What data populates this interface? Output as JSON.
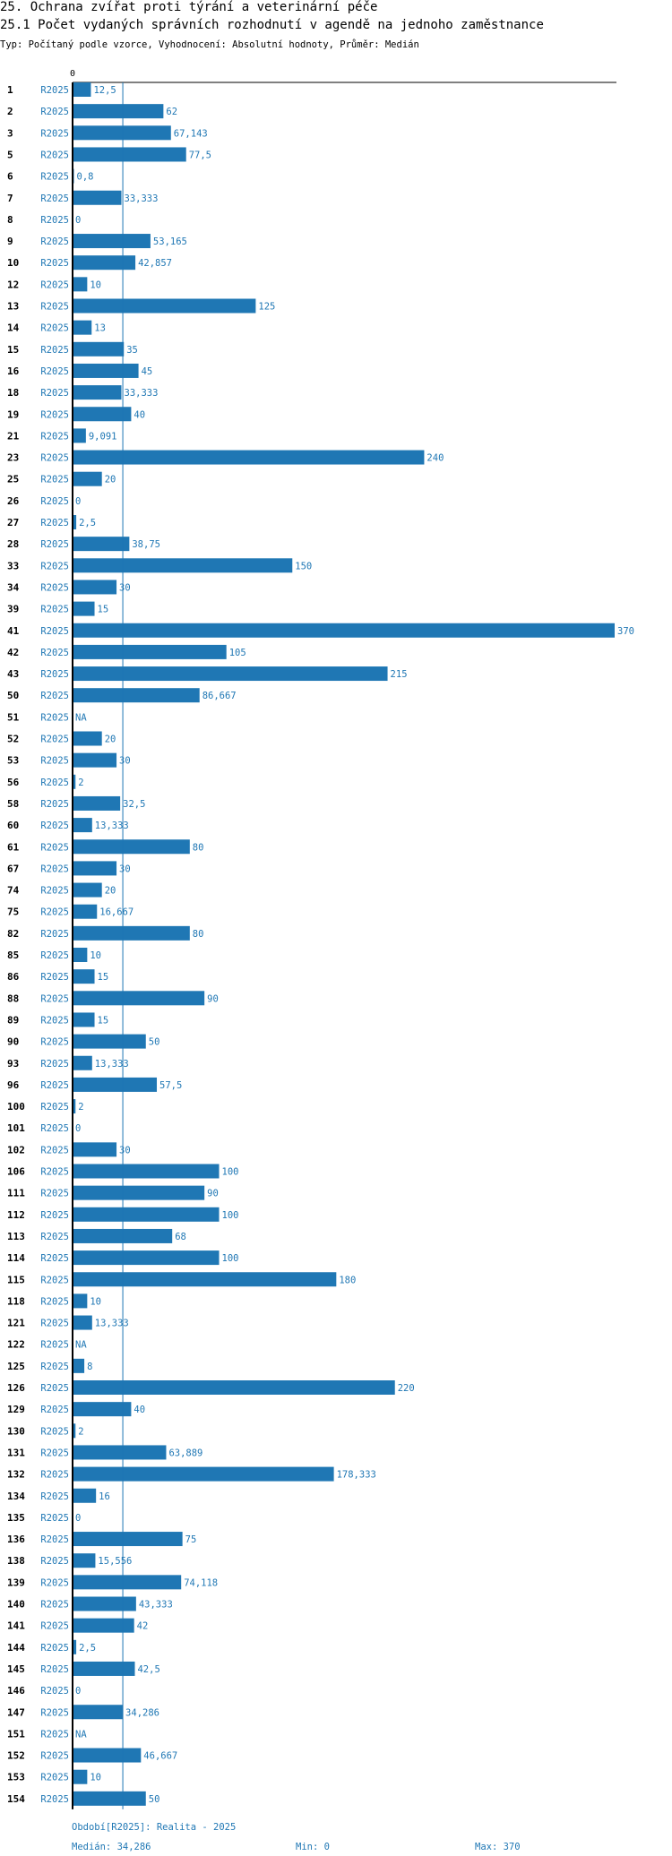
{
  "header": {
    "title": "25. Ochrana zvířat proti týrání a veterinární péče",
    "subtitle": "25.1 Počet vydaných správních rozhodnutí v agendě na jednoho zaměstnance",
    "meta": "Typ: Počítaný podle vzorce, Vyhodnocení: Absolutní hodnoty, Průměr: Medián"
  },
  "chart_data": {
    "type": "bar",
    "orientation": "horizontal",
    "title": "25.1 Počet vydaných správních rozhodnutí v agendě na jednoho zaměstnance",
    "axis_start_label": "0",
    "xlim": [
      0,
      370
    ],
    "median": 34.286,
    "bar_color": "#1f77b4",
    "rows": [
      {
        "id": "1",
        "period": "R2025",
        "value": 12.5,
        "label": "12,5"
      },
      {
        "id": "2",
        "period": "R2025",
        "value": 62,
        "label": "62"
      },
      {
        "id": "3",
        "period": "R2025",
        "value": 67.143,
        "label": "67,143"
      },
      {
        "id": "5",
        "period": "R2025",
        "value": 77.5,
        "label": "77,5"
      },
      {
        "id": "6",
        "period": "R2025",
        "value": 0.8,
        "label": "0,8"
      },
      {
        "id": "7",
        "period": "R2025",
        "value": 33.333,
        "label": "33,333"
      },
      {
        "id": "8",
        "period": "R2025",
        "value": 0,
        "label": "0"
      },
      {
        "id": "9",
        "period": "R2025",
        "value": 53.165,
        "label": "53,165"
      },
      {
        "id": "10",
        "period": "R2025",
        "value": 42.857,
        "label": "42,857"
      },
      {
        "id": "12",
        "period": "R2025",
        "value": 10,
        "label": "10"
      },
      {
        "id": "13",
        "period": "R2025",
        "value": 125,
        "label": "125"
      },
      {
        "id": "14",
        "period": "R2025",
        "value": 13,
        "label": "13"
      },
      {
        "id": "15",
        "period": "R2025",
        "value": 35,
        "label": "35"
      },
      {
        "id": "16",
        "period": "R2025",
        "value": 45,
        "label": "45"
      },
      {
        "id": "18",
        "period": "R2025",
        "value": 33.333,
        "label": "33,333"
      },
      {
        "id": "19",
        "period": "R2025",
        "value": 40,
        "label": "40"
      },
      {
        "id": "21",
        "period": "R2025",
        "value": 9.091,
        "label": "9,091"
      },
      {
        "id": "23",
        "period": "R2025",
        "value": 240,
        "label": "240"
      },
      {
        "id": "25",
        "period": "R2025",
        "value": 20,
        "label": "20"
      },
      {
        "id": "26",
        "period": "R2025",
        "value": 0,
        "label": "0"
      },
      {
        "id": "27",
        "period": "R2025",
        "value": 2.5,
        "label": "2,5"
      },
      {
        "id": "28",
        "period": "R2025",
        "value": 38.75,
        "label": "38,75"
      },
      {
        "id": "33",
        "period": "R2025",
        "value": 150,
        "label": "150"
      },
      {
        "id": "34",
        "period": "R2025",
        "value": 30,
        "label": "30"
      },
      {
        "id": "39",
        "period": "R2025",
        "value": 15,
        "label": "15"
      },
      {
        "id": "41",
        "period": "R2025",
        "value": 370,
        "label": "370"
      },
      {
        "id": "42",
        "period": "R2025",
        "value": 105,
        "label": "105"
      },
      {
        "id": "43",
        "period": "R2025",
        "value": 215,
        "label": "215"
      },
      {
        "id": "50",
        "period": "R2025",
        "value": 86.667,
        "label": "86,667"
      },
      {
        "id": "51",
        "period": "R2025",
        "value": null,
        "label": "NA"
      },
      {
        "id": "52",
        "period": "R2025",
        "value": 20,
        "label": "20"
      },
      {
        "id": "53",
        "period": "R2025",
        "value": 30,
        "label": "30"
      },
      {
        "id": "56",
        "period": "R2025",
        "value": 2,
        "label": "2"
      },
      {
        "id": "58",
        "period": "R2025",
        "value": 32.5,
        "label": "32,5"
      },
      {
        "id": "60",
        "period": "R2025",
        "value": 13.333,
        "label": "13,333"
      },
      {
        "id": "61",
        "period": "R2025",
        "value": 80,
        "label": "80"
      },
      {
        "id": "67",
        "period": "R2025",
        "value": 30,
        "label": "30"
      },
      {
        "id": "74",
        "period": "R2025",
        "value": 20,
        "label": "20"
      },
      {
        "id": "75",
        "period": "R2025",
        "value": 16.667,
        "label": "16,667"
      },
      {
        "id": "82",
        "period": "R2025",
        "value": 80,
        "label": "80"
      },
      {
        "id": "85",
        "period": "R2025",
        "value": 10,
        "label": "10"
      },
      {
        "id": "86",
        "period": "R2025",
        "value": 15,
        "label": "15"
      },
      {
        "id": "88",
        "period": "R2025",
        "value": 90,
        "label": "90"
      },
      {
        "id": "89",
        "period": "R2025",
        "value": 15,
        "label": "15"
      },
      {
        "id": "90",
        "period": "R2025",
        "value": 50,
        "label": "50"
      },
      {
        "id": "93",
        "period": "R2025",
        "value": 13.333,
        "label": "13,333"
      },
      {
        "id": "96",
        "period": "R2025",
        "value": 57.5,
        "label": "57,5"
      },
      {
        "id": "100",
        "period": "R2025",
        "value": 2,
        "label": "2"
      },
      {
        "id": "101",
        "period": "R2025",
        "value": 0,
        "label": "0"
      },
      {
        "id": "102",
        "period": "R2025",
        "value": 30,
        "label": "30"
      },
      {
        "id": "106",
        "period": "R2025",
        "value": 100,
        "label": "100"
      },
      {
        "id": "111",
        "period": "R2025",
        "value": 90,
        "label": "90"
      },
      {
        "id": "112",
        "period": "R2025",
        "value": 100,
        "label": "100"
      },
      {
        "id": "113",
        "period": "R2025",
        "value": 68,
        "label": "68"
      },
      {
        "id": "114",
        "period": "R2025",
        "value": 100,
        "label": "100"
      },
      {
        "id": "115",
        "period": "R2025",
        "value": 180,
        "label": "180"
      },
      {
        "id": "118",
        "period": "R2025",
        "value": 10,
        "label": "10"
      },
      {
        "id": "121",
        "period": "R2025",
        "value": 13.333,
        "label": "13,333"
      },
      {
        "id": "122",
        "period": "R2025",
        "value": null,
        "label": "NA"
      },
      {
        "id": "125",
        "period": "R2025",
        "value": 8,
        "label": "8"
      },
      {
        "id": "126",
        "period": "R2025",
        "value": 220,
        "label": "220"
      },
      {
        "id": "129",
        "period": "R2025",
        "value": 40,
        "label": "40"
      },
      {
        "id": "130",
        "period": "R2025",
        "value": 2,
        "label": "2"
      },
      {
        "id": "131",
        "period": "R2025",
        "value": 63.889,
        "label": "63,889"
      },
      {
        "id": "132",
        "period": "R2025",
        "value": 178.333,
        "label": "178,333"
      },
      {
        "id": "134",
        "period": "R2025",
        "value": 16,
        "label": "16"
      },
      {
        "id": "135",
        "period": "R2025",
        "value": 0,
        "label": "0"
      },
      {
        "id": "136",
        "period": "R2025",
        "value": 75,
        "label": "75"
      },
      {
        "id": "138",
        "period": "R2025",
        "value": 15.556,
        "label": "15,556"
      },
      {
        "id": "139",
        "period": "R2025",
        "value": 74.118,
        "label": "74,118"
      },
      {
        "id": "140",
        "period": "R2025",
        "value": 43.333,
        "label": "43,333"
      },
      {
        "id": "141",
        "period": "R2025",
        "value": 42,
        "label": "42"
      },
      {
        "id": "144",
        "period": "R2025",
        "value": 2.5,
        "label": "2,5"
      },
      {
        "id": "145",
        "period": "R2025",
        "value": 42.5,
        "label": "42,5"
      },
      {
        "id": "146",
        "period": "R2025",
        "value": 0,
        "label": "0"
      },
      {
        "id": "147",
        "period": "R2025",
        "value": 34.286,
        "label": "34,286"
      },
      {
        "id": "151",
        "period": "R2025",
        "value": null,
        "label": "NA"
      },
      {
        "id": "152",
        "period": "R2025",
        "value": 46.667,
        "label": "46,667"
      },
      {
        "id": "153",
        "period": "R2025",
        "value": 10,
        "label": "10"
      },
      {
        "id": "154",
        "period": "R2025",
        "value": 50,
        "label": "50"
      }
    ]
  },
  "footer": {
    "period_text": "Období[R2025]: Realita - 2025",
    "median_text": "Medián: 34,286",
    "min_text": "Min: 0",
    "max_text": "Max: 370"
  }
}
